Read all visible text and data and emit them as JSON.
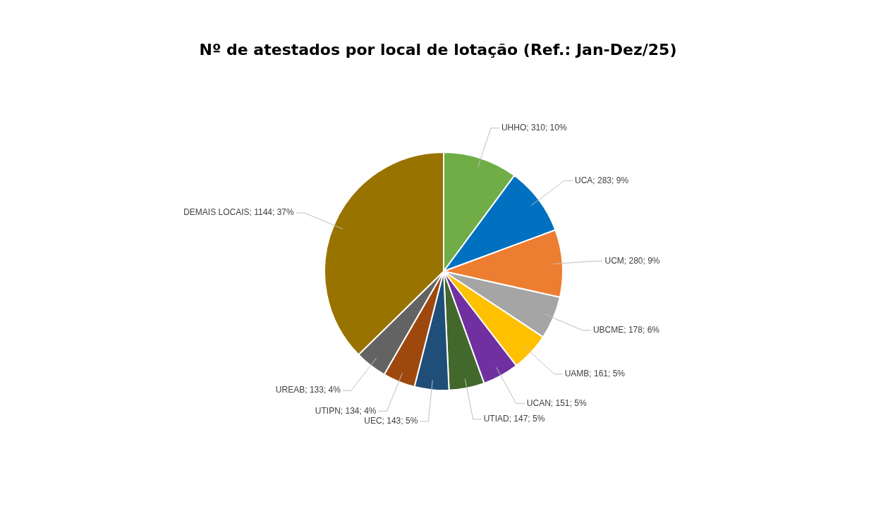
{
  "chart_data": {
    "type": "pie",
    "title": "Nº de atestados por local de lotação (Ref.: Jan-Dez/25)",
    "categories": [
      "UHHO",
      "UCA",
      "UCM",
      "UBCME",
      "UAMB",
      "UCAN",
      "UTIAD",
      "UEC",
      "UTIPN",
      "UREAB",
      "DEMAIS LOCAIS"
    ],
    "values": [
      310,
      283,
      280,
      178,
      161,
      151,
      147,
      143,
      134,
      133,
      1144
    ],
    "colors": [
      "#70ad47",
      "#0070c0",
      "#ed7d31",
      "#a5a5a5",
      "#ffc000",
      "#7030a0",
      "#43682b",
      "#1f4e79",
      "#9e480e",
      "#636363",
      "#997300"
    ],
    "value_labels": [
      "310; 10%",
      "283; 9%",
      "280; 9%",
      "178; 6%",
      "161; 5%",
      "151; 5%",
      "147; 5%",
      "143; 5%",
      "134; 4%",
      "133; 4%",
      "1144; 37%"
    ],
    "legend": false
  }
}
